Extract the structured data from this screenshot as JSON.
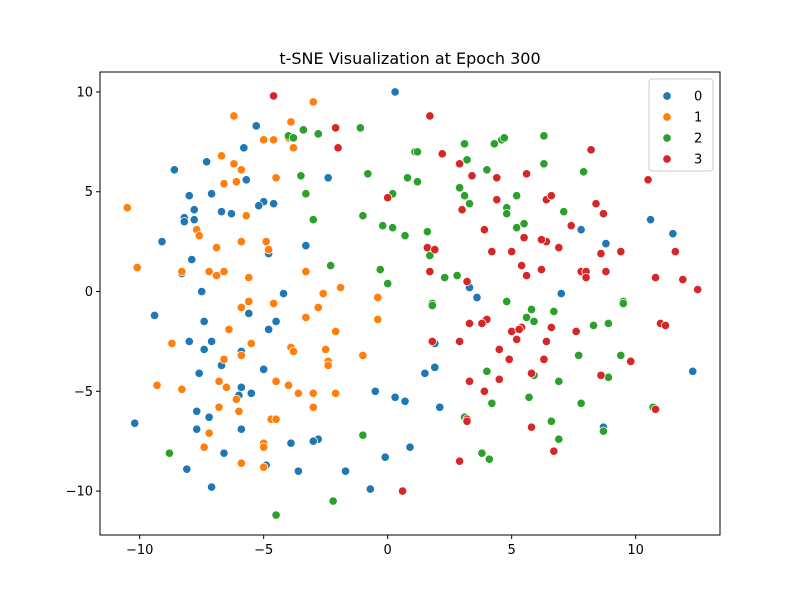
{
  "chart_data": {
    "type": "scatter",
    "title": "t-SNE Visualization at Epoch 300",
    "xlabel": "",
    "ylabel": "",
    "xlim": [
      -11.6,
      13.4
    ],
    "ylim": [
      -12.2,
      11.0
    ],
    "xticks": [
      -10,
      -5,
      0,
      5,
      10
    ],
    "yticks": [
      -10,
      -5,
      0,
      5,
      10
    ],
    "xtick_labels": [
      "−10",
      "−5",
      "0",
      "5",
      "10"
    ],
    "ytick_labels": [
      "−10",
      "−5",
      "0",
      "5",
      "10"
    ],
    "grid": false,
    "legend_position": "top-right",
    "series": [
      {
        "name": "0",
        "color": "#1f77b4",
        "points": [
          [
            0.3,
            10.0
          ],
          [
            -5.3,
            8.3
          ],
          [
            -5.8,
            7.2
          ],
          [
            -8.6,
            6.1
          ],
          [
            -7.3,
            6.5
          ],
          [
            -4.5,
            5.7
          ],
          [
            -5.7,
            5.6
          ],
          [
            -2.4,
            5.7
          ],
          [
            -7.1,
            4.9
          ],
          [
            -8.0,
            4.8
          ],
          [
            -5.0,
            4.5
          ],
          [
            -4.6,
            4.4
          ],
          [
            -5.2,
            4.3
          ],
          [
            -7.8,
            4.1
          ],
          [
            -6.7,
            4.0
          ],
          [
            -6.3,
            3.9
          ],
          [
            -8.2,
            3.7
          ],
          [
            -7.8,
            3.6
          ],
          [
            -8.2,
            3.5
          ],
          [
            -3.3,
            2.3
          ],
          [
            -9.1,
            2.5
          ],
          [
            -4.8,
            1.9
          ],
          [
            -7.9,
            1.6
          ],
          [
            -8.3,
            0.9
          ],
          [
            -7.5,
            0.0
          ],
          [
            -4.2,
            -0.1
          ],
          [
            -9.4,
            -1.2
          ],
          [
            -5.6,
            -1.1
          ],
          [
            -7.4,
            -1.5
          ],
          [
            -4.5,
            -1.5
          ],
          [
            -8.0,
            -2.5
          ],
          [
            -7.1,
            -2.5
          ],
          [
            -4.8,
            -1.9
          ],
          [
            -7.4,
            -2.9
          ],
          [
            -5.9,
            -3.0
          ],
          [
            -6.7,
            -3.7
          ],
          [
            -5.0,
            -3.9
          ],
          [
            -7.6,
            -4.1
          ],
          [
            -5.9,
            -4.8
          ],
          [
            -5.5,
            -5.1
          ],
          [
            -6.0,
            -5.2
          ],
          [
            -7.7,
            -6.0
          ],
          [
            -7.2,
            -6.3
          ],
          [
            -10.2,
            -6.6
          ],
          [
            -7.7,
            -6.9
          ],
          [
            -5.9,
            -6.9
          ],
          [
            -2.8,
            -7.4
          ],
          [
            -3.0,
            -7.5
          ],
          [
            -3.9,
            -7.6
          ],
          [
            -6.6,
            -8.1
          ],
          [
            -4.9,
            -8.7
          ],
          [
            -8.1,
            -8.9
          ],
          [
            -3.6,
            -9.0
          ],
          [
            -1.7,
            -9.0
          ],
          [
            -7.1,
            -9.8
          ],
          [
            -0.7,
            -9.9
          ],
          [
            -0.1,
            -8.3
          ],
          [
            0.9,
            -7.8
          ],
          [
            -0.5,
            -5.0
          ],
          [
            0.3,
            -5.3
          ],
          [
            0.7,
            -5.5
          ],
          [
            2.1,
            -5.8
          ],
          [
            1.5,
            -4.1
          ],
          [
            1.9,
            -3.8
          ],
          [
            1.9,
            -2.6
          ],
          [
            3.3,
            0.2
          ],
          [
            3.6,
            -0.3
          ],
          [
            7.0,
            -0.1
          ],
          [
            7.8,
            3.1
          ],
          [
            8.8,
            2.4
          ],
          [
            10.6,
            3.6
          ],
          [
            11.5,
            2.9
          ],
          [
            12.3,
            -4.0
          ],
          [
            8.7,
            -6.8
          ]
        ]
      },
      {
        "name": "1",
        "color": "#ff7f0e",
        "points": [
          [
            -10.5,
            4.2
          ],
          [
            -10.1,
            1.2
          ],
          [
            -3.0,
            9.5
          ],
          [
            -6.2,
            8.8
          ],
          [
            -3.9,
            8.5
          ],
          [
            -5.0,
            7.6
          ],
          [
            -4.6,
            7.6
          ],
          [
            -4.0,
            7.7
          ],
          [
            -3.8,
            7.2
          ],
          [
            -6.7,
            6.8
          ],
          [
            -6.2,
            6.4
          ],
          [
            -5.9,
            6.1
          ],
          [
            -6.6,
            5.4
          ],
          [
            -6.1,
            5.5
          ],
          [
            -4.5,
            5.7
          ],
          [
            -7.7,
            3.1
          ],
          [
            -7.6,
            2.8
          ],
          [
            -5.7,
            3.8
          ],
          [
            -6.9,
            2.2
          ],
          [
            -5.9,
            2.5
          ],
          [
            -4.9,
            2.5
          ],
          [
            -4.8,
            2.1
          ],
          [
            -6.6,
            1.0
          ],
          [
            -7.2,
            1.0
          ],
          [
            -6.9,
            0.8
          ],
          [
            -5.6,
            0.7
          ],
          [
            -3.3,
            1.0
          ],
          [
            -8.3,
            1.0
          ],
          [
            -1.9,
            0.2
          ],
          [
            -2.6,
            -0.1
          ],
          [
            -5.6,
            -0.5
          ],
          [
            -4.6,
            -0.6
          ],
          [
            -2.8,
            -0.8
          ],
          [
            -5.9,
            -0.8
          ],
          [
            -6.4,
            -1.9
          ],
          [
            -3.3,
            -1.3
          ],
          [
            -2.1,
            -2.0
          ],
          [
            -0.4,
            -0.3
          ],
          [
            -0.4,
            -1.4
          ],
          [
            -8.7,
            -2.6
          ],
          [
            -5.5,
            -2.6
          ],
          [
            -3.9,
            -2.8
          ],
          [
            -3.8,
            -3.0
          ],
          [
            -5.9,
            -3.2
          ],
          [
            -6.6,
            -3.4
          ],
          [
            -2.5,
            -2.9
          ],
          [
            -2.4,
            -3.5
          ],
          [
            -2.4,
            -3.7
          ],
          [
            -1.0,
            -3.2
          ],
          [
            -4.5,
            -4.5
          ],
          [
            -4.0,
            -4.7
          ],
          [
            -6.8,
            -4.5
          ],
          [
            -9.3,
            -4.7
          ],
          [
            -8.3,
            -4.9
          ],
          [
            -6.5,
            -4.8
          ],
          [
            -3.6,
            -5.1
          ],
          [
            -3.0,
            -5.1
          ],
          [
            -2.1,
            -5.1
          ],
          [
            -6.1,
            -5.4
          ],
          [
            -6.8,
            -5.8
          ],
          [
            -6.0,
            -6.0
          ],
          [
            -3.0,
            -5.8
          ],
          [
            -4.7,
            -6.4
          ],
          [
            -4.5,
            -6.4
          ],
          [
            -7.2,
            -7.1
          ],
          [
            -5.0,
            -7.6
          ],
          [
            -5.0,
            -7.8
          ],
          [
            -7.4,
            -7.8
          ],
          [
            -5.9,
            -8.6
          ],
          [
            -5.0,
            -8.8
          ]
        ]
      },
      {
        "name": "2",
        "color": "#2ca02c",
        "points": [
          [
            -4.5,
            -11.2
          ],
          [
            -2.2,
            -10.5
          ],
          [
            -8.8,
            -8.1
          ],
          [
            -1.0,
            -7.2
          ],
          [
            -1.1,
            8.2
          ],
          [
            -3.4,
            8.1
          ],
          [
            -2.8,
            7.9
          ],
          [
            -4.0,
            7.8
          ],
          [
            -3.8,
            7.7
          ],
          [
            -0.8,
            5.9
          ],
          [
            -3.5,
            5.8
          ],
          [
            -3.3,
            4.9
          ],
          [
            0.2,
            4.9
          ],
          [
            -1.0,
            3.8
          ],
          [
            -3.0,
            3.6
          ],
          [
            -0.2,
            3.3
          ],
          [
            0.2,
            3.2
          ],
          [
            0.7,
            2.8
          ],
          [
            -2.3,
            1.3
          ],
          [
            -0.3,
            1.1
          ],
          [
            0.0,
            0.4
          ],
          [
            1.1,
            7.0
          ],
          [
            1.2,
            7.0
          ],
          [
            1.2,
            5.5
          ],
          [
            0.8,
            5.7
          ],
          [
            1.6,
            3.0
          ],
          [
            1.7,
            1.8
          ],
          [
            1.8,
            -0.6
          ],
          [
            1.8,
            -0.7
          ],
          [
            2.3,
            0.7
          ],
          [
            2.8,
            0.8
          ],
          [
            2.9,
            5.2
          ],
          [
            3.1,
            4.8
          ],
          [
            3.3,
            4.4
          ],
          [
            3.2,
            6.6
          ],
          [
            3.1,
            7.4
          ],
          [
            4.3,
            7.4
          ],
          [
            4.6,
            7.6
          ],
          [
            4.7,
            7.7
          ],
          [
            4.0,
            6.1
          ],
          [
            4.8,
            4.2
          ],
          [
            4.8,
            3.9
          ],
          [
            5.2,
            4.8
          ],
          [
            5.2,
            3.2
          ],
          [
            5.5,
            3.4
          ],
          [
            6.3,
            6.4
          ],
          [
            6.3,
            7.8
          ],
          [
            4.8,
            -0.5
          ],
          [
            5.8,
            -0.9
          ],
          [
            5.6,
            -1.3
          ],
          [
            5.9,
            -1.5
          ],
          [
            5.7,
            -5.3
          ],
          [
            4.2,
            -5.6
          ],
          [
            4.0,
            -4.0
          ],
          [
            3.8,
            -8.1
          ],
          [
            4.1,
            -8.4
          ],
          [
            3.1,
            -6.3
          ],
          [
            6.6,
            -6.5
          ],
          [
            6.9,
            -7.4
          ],
          [
            6.9,
            -4.5
          ],
          [
            5.9,
            -4.2
          ],
          [
            6.7,
            -1.0
          ],
          [
            7.7,
            -3.2
          ],
          [
            7.8,
            -5.6
          ],
          [
            8.7,
            -7.0
          ],
          [
            8.9,
            -4.3
          ],
          [
            8.9,
            -1.6
          ],
          [
            9.4,
            -3.2
          ],
          [
            9.5,
            -0.5
          ],
          [
            9.5,
            -0.6
          ],
          [
            10.7,
            -5.8
          ],
          [
            7.9,
            6.0
          ],
          [
            8.3,
            -1.7
          ],
          [
            7.1,
            4.0
          ]
        ]
      },
      {
        "name": "3",
        "color": "#d62728",
        "points": [
          [
            -4.6,
            9.8
          ],
          [
            -2.1,
            8.2
          ],
          [
            -2.0,
            7.2
          ],
          [
            -2.0,
            7.2
          ],
          [
            1.7,
            8.8
          ],
          [
            0.0,
            4.7
          ],
          [
            2.2,
            6.9
          ],
          [
            2.9,
            6.4
          ],
          [
            3.4,
            5.8
          ],
          [
            3.0,
            4.1
          ],
          [
            4.4,
            5.7
          ],
          [
            4.4,
            4.6
          ],
          [
            4.2,
            2.0
          ],
          [
            5.5,
            2.7
          ],
          [
            5.6,
            5.9
          ],
          [
            6.4,
            4.6
          ],
          [
            6.6,
            4.8
          ],
          [
            6.6,
            4.8
          ],
          [
            5.4,
            1.3
          ],
          [
            5.0,
            2.0
          ],
          [
            6.4,
            2.5
          ],
          [
            6.2,
            2.6
          ],
          [
            6.9,
            2.2
          ],
          [
            6.2,
            1.1
          ],
          [
            5.6,
            0.8
          ],
          [
            7.4,
            3.3
          ],
          [
            8.2,
            7.1
          ],
          [
            8.4,
            4.4
          ],
          [
            8.7,
            3.9
          ],
          [
            7.8,
            1.0
          ],
          [
            8.0,
            1.0
          ],
          [
            8.6,
            1.9
          ],
          [
            8.8,
            1.0
          ],
          [
            8.0,
            0.7
          ],
          [
            9.4,
            2.0
          ],
          [
            10.5,
            5.6
          ],
          [
            10.8,
            0.7
          ],
          [
            11.6,
            2.0
          ],
          [
            11.9,
            0.6
          ],
          [
            12.5,
            0.1
          ],
          [
            1.6,
            2.2
          ],
          [
            1.9,
            2.1
          ],
          [
            1.7,
            1.0
          ],
          [
            3.2,
            0.5
          ],
          [
            3.9,
            3.1
          ],
          [
            2.9,
            -2.5
          ],
          [
            3.3,
            -1.6
          ],
          [
            3.9,
            -1.5
          ],
          [
            4.0,
            -1.4
          ],
          [
            3.8,
            -1.6
          ],
          [
            5.0,
            -2.0
          ],
          [
            5.4,
            -1.8
          ],
          [
            5.3,
            -1.9
          ],
          [
            5.2,
            -2.4
          ],
          [
            6.4,
            -2.5
          ],
          [
            6.6,
            -1.8
          ],
          [
            4.5,
            -2.9
          ],
          [
            4.9,
            -3.4
          ],
          [
            6.3,
            -3.4
          ],
          [
            7.6,
            -2.0
          ],
          [
            5.8,
            -4.1
          ],
          [
            4.5,
            -4.4
          ],
          [
            3.9,
            -5.0
          ],
          [
            3.3,
            -4.5
          ],
          [
            3.2,
            -6.4
          ],
          [
            3.2,
            -6.5
          ],
          [
            5.8,
            -6.8
          ],
          [
            6.7,
            -8.0
          ],
          [
            8.6,
            -4.2
          ],
          [
            9.8,
            -3.5
          ],
          [
            10.8,
            -5.9
          ],
          [
            11.0,
            -1.6
          ],
          [
            11.2,
            -1.7
          ],
          [
            1.8,
            -2.5
          ],
          [
            2.9,
            -8.5
          ],
          [
            0.6,
            -10.0
          ]
        ]
      }
    ]
  }
}
